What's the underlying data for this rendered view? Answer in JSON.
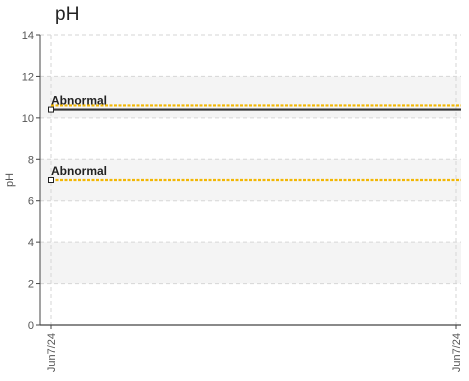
{
  "colors": {
    "band": "#f4f4f4",
    "grid": "#d6d6d6",
    "axis": "#444444",
    "threshold": "#f2b705",
    "value_line": "#333333"
  },
  "chart_data": {
    "type": "line",
    "title": "pH",
    "ylabel": "pH",
    "xlabel": "",
    "ylim": [
      0,
      14
    ],
    "yticks": [
      0,
      2,
      4,
      6,
      8,
      10,
      12,
      14
    ],
    "xticks": [
      "Jun7/24",
      "Jun7/24"
    ],
    "bands": [
      {
        "from": 2,
        "to": 4
      },
      {
        "from": 6,
        "to": 8
      },
      {
        "from": 10,
        "to": 12
      }
    ],
    "thresholds": [
      {
        "value": 10.6
      },
      {
        "value": 7.0
      }
    ],
    "series": [
      {
        "x": [
          "Jun7/24",
          "Jun7/24"
        ],
        "values": [
          10.4,
          10.4
        ]
      }
    ],
    "annotations": [
      {
        "label": "Abnormal",
        "x": "Jun7/24",
        "y": 10.4
      },
      {
        "label": "Abnormal",
        "x": "Jun7/24",
        "y": 7.0
      }
    ]
  }
}
